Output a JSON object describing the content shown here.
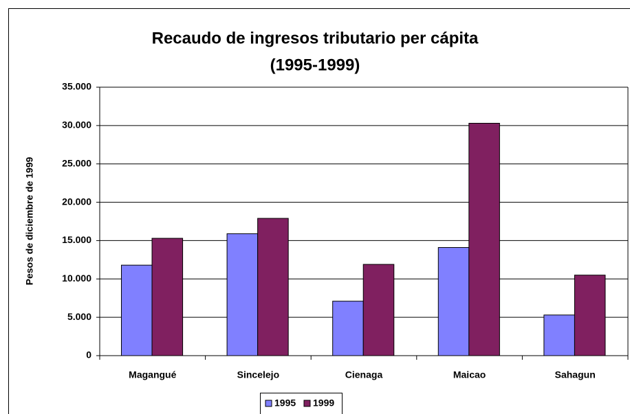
{
  "chart_data": {
    "type": "bar",
    "title": "Recaudo de ingresos tributario per cápita",
    "subtitle": "(1995-1999)",
    "y_label": "Pesos de diciembre de 1999",
    "categories": [
      "Magangué",
      "Sincelejo",
      "Cienaga",
      "Maicao",
      "Sahagun"
    ],
    "series": [
      {
        "name": "1995",
        "color": "#8080ff",
        "values": [
          11800,
          15900,
          7100,
          14100,
          5300
        ]
      },
      {
        "name": "1999",
        "color": "#802060",
        "values": [
          15300,
          17900,
          11900,
          30300,
          10500
        ]
      }
    ],
    "ylim": [
      0,
      35000
    ],
    "yticks": [
      0,
      {
        "value": 5000,
        "label": "5.000"
      },
      {
        "value": 10000,
        "label": "10.000"
      },
      {
        "value": 15000,
        "label": "15.000"
      },
      {
        "value": 20000,
        "label": "20.000"
      },
      {
        "value": 25000,
        "label": "25.000"
      },
      {
        "value": 30000,
        "label": "30.000"
      },
      {
        "value": 35000,
        "label": "35.000"
      }
    ],
    "grid": true,
    "legend": "bottom"
  }
}
